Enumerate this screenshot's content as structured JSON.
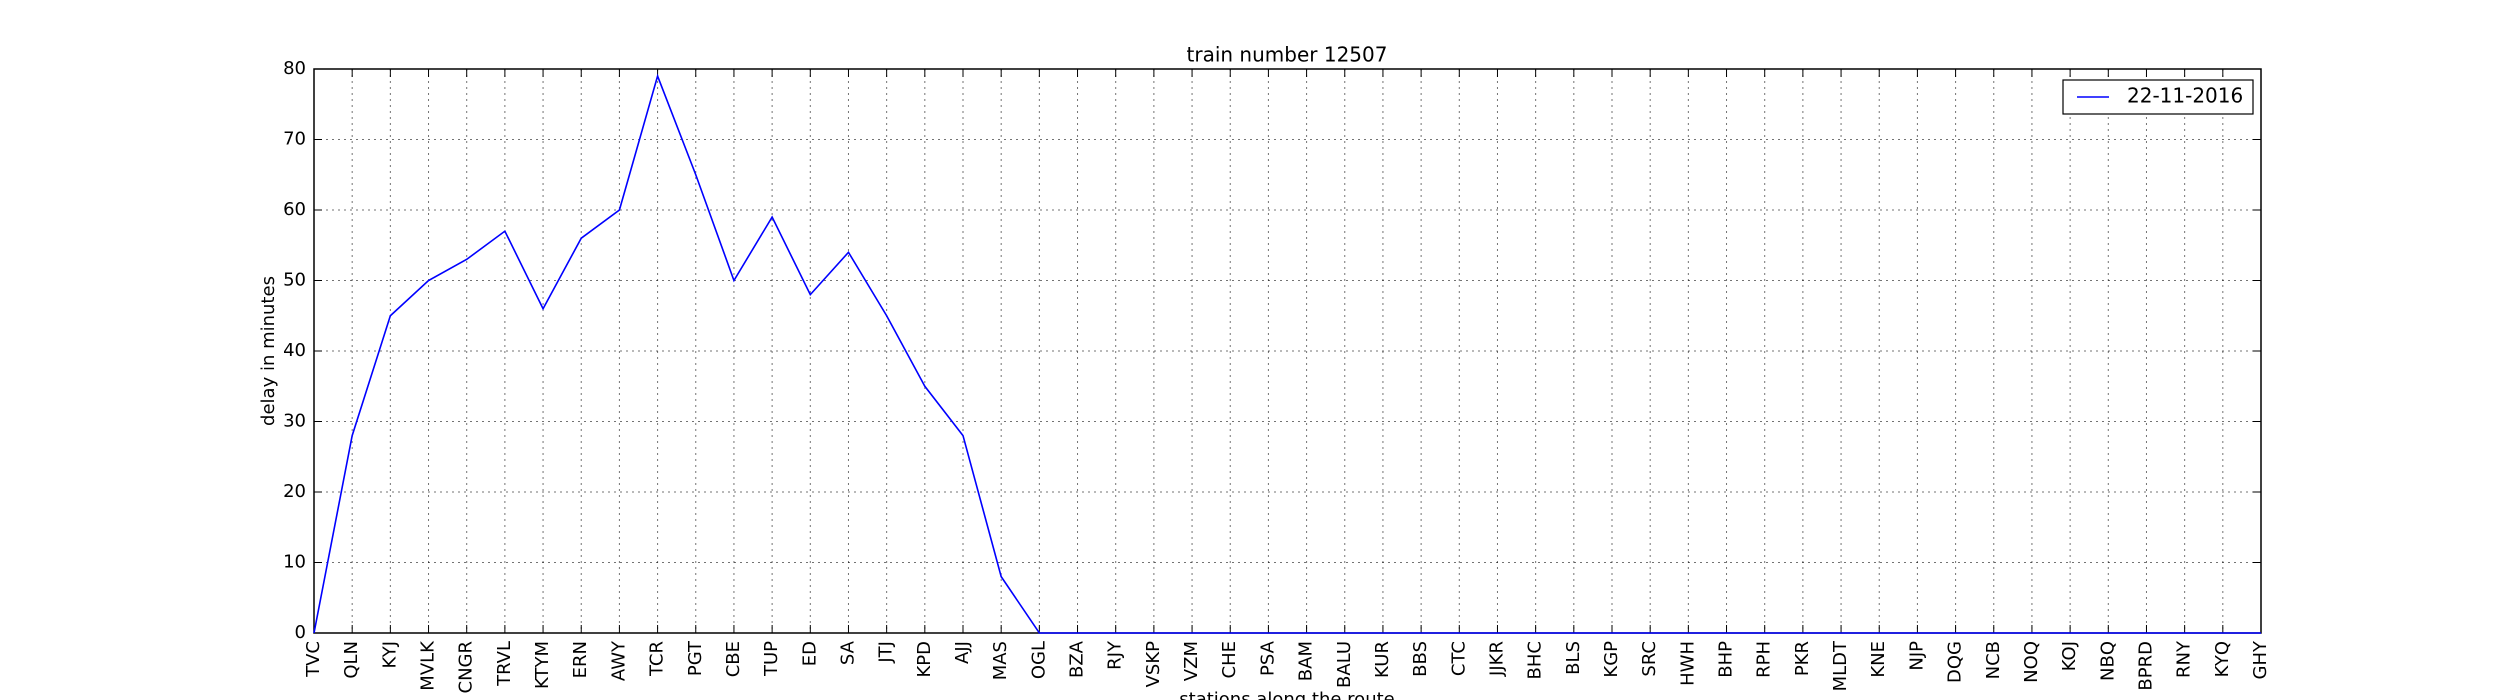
{
  "chart_data": {
    "type": "line",
    "title": "train number 12507",
    "xlabel": "stations along the route",
    "ylabel": "delay in minutes",
    "categories": [
      "TVC",
      "QLN",
      "KYJ",
      "MVLK",
      "CNGR",
      "TRVL",
      "KTYM",
      "ERN",
      "AWY",
      "TCR",
      "PGT",
      "CBE",
      "TUP",
      "ED",
      "SA",
      "JTJ",
      "KPD",
      "AJJ",
      "MAS",
      "OGL",
      "BZA",
      "RJY",
      "VSKP",
      "VZM",
      "CHE",
      "PSA",
      "BAM",
      "BALU",
      "KUR",
      "BBS",
      "CTC",
      "JJKR",
      "BHC",
      "BLS",
      "KGP",
      "SRC",
      "HWH",
      "BHP",
      "RPH",
      "PKR",
      "MLDT",
      "KNE",
      "NJP",
      "DQG",
      "NCB",
      "NOQ",
      "KOJ",
      "NBQ",
      "BPRD",
      "RNY",
      "KYQ",
      "GHY"
    ],
    "series": [
      {
        "name": "22-11-2016",
        "color": "#0000ff",
        "values": [
          0,
          28,
          45,
          50,
          53,
          57,
          46,
          56,
          60,
          79,
          65,
          50,
          59,
          48,
          54,
          45,
          35,
          28,
          8,
          0,
          0,
          0,
          0,
          0,
          0,
          0,
          0,
          0,
          0,
          0,
          0,
          0,
          0,
          0,
          0,
          0,
          0,
          0,
          0,
          0,
          0,
          0,
          0,
          0,
          0,
          0,
          0,
          0,
          0,
          0,
          0,
          0
        ]
      }
    ],
    "ylim": [
      0,
      80
    ],
    "yticks": [
      0,
      10,
      20,
      30,
      40,
      50,
      60,
      70,
      80
    ],
    "grid": true,
    "legend": "upper right"
  }
}
